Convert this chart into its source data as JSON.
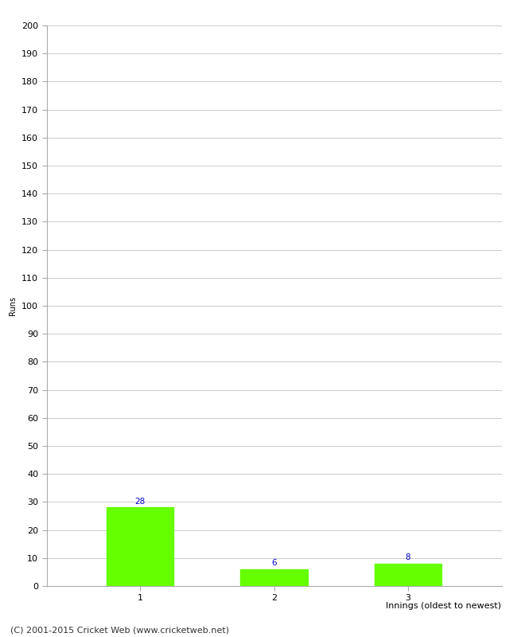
{
  "categories": [
    "1",
    "2",
    "3"
  ],
  "values": [
    28,
    6,
    8
  ],
  "bar_color": "#66ff00",
  "bar_edge_color": "#66ff00",
  "xlabel": "Innings (oldest to newest)",
  "ylabel": "Runs",
  "ylim": [
    0,
    200
  ],
  "yticks": [
    0,
    10,
    20,
    30,
    40,
    50,
    60,
    70,
    80,
    90,
    100,
    110,
    120,
    130,
    140,
    150,
    160,
    170,
    180,
    190,
    200
  ],
  "annotation_color": "#0000cc",
  "annotation_fontsize": 7.5,
  "footer_text": "(C) 2001-2015 Cricket Web (www.cricketweb.net)",
  "footer_fontsize": 8,
  "background_color": "#ffffff",
  "grid_color": "#cccccc",
  "axis_label_fontsize": 8,
  "tick_fontsize": 8,
  "ylabel_fontsize": 7,
  "spine_color": "#aaaaaa"
}
